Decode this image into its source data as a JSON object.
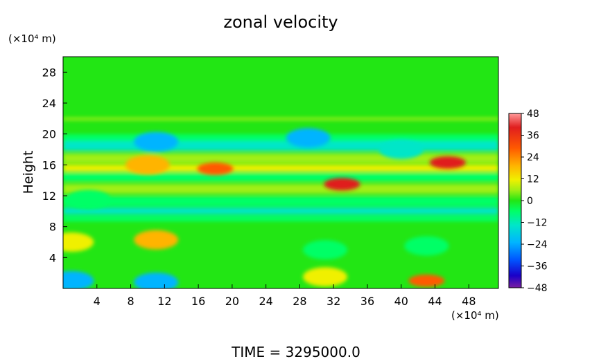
{
  "chart_data": {
    "type": "heatmap",
    "title": "zonal velocity",
    "ylabel": "Height",
    "y_unit": "(×10⁴ m)",
    "x_unit": "(×10⁴ m)",
    "xlim": [
      0,
      51.5
    ],
    "ylim": [
      0,
      30
    ],
    "x_ticks": [
      4,
      8,
      12,
      16,
      20,
      24,
      28,
      32,
      36,
      40,
      44,
      48
    ],
    "y_ticks": [
      4,
      8,
      12,
      16,
      20,
      24,
      28
    ],
    "colorbar": {
      "min": -48,
      "max": 48,
      "ticks": [
        48,
        36,
        24,
        12,
        0,
        -12,
        -24,
        -36,
        -48
      ],
      "colors": [
        "#7a1fa2",
        "#1a00c8",
        "#0055ff",
        "#00b4ff",
        "#00e6c8",
        "#00ff66",
        "#22e614",
        "#a0ef14",
        "#f0f000",
        "#ffb400",
        "#ff5a00",
        "#e01e1e",
        "#ff9999"
      ]
    },
    "features": [
      {
        "x": 11,
        "y": 6.3,
        "value": 24
      },
      {
        "x": 1,
        "y": 6,
        "value": 18
      },
      {
        "x": 18,
        "y": 15.5,
        "value": 30
      },
      {
        "x": 10,
        "y": 16,
        "value": 24
      },
      {
        "x": 33,
        "y": 13.5,
        "value": 36
      },
      {
        "x": 45.5,
        "y": 16.3,
        "value": 40
      },
      {
        "x": 43,
        "y": 1,
        "value": 30
      },
      {
        "x": 31,
        "y": 1.5,
        "value": 18
      },
      {
        "x": 11,
        "y": 19,
        "value": -24
      },
      {
        "x": 29,
        "y": 19.5,
        "value": -24
      },
      {
        "x": 40,
        "y": 18,
        "value": -18
      },
      {
        "x": 1,
        "y": 1,
        "value": -24
      },
      {
        "x": 11,
        "y": 0.8,
        "value": -24
      },
      {
        "x": 31,
        "y": 5,
        "value": -12
      },
      {
        "x": 43,
        "y": 5.5,
        "value": -12
      },
      {
        "x": 3,
        "y": 11.5,
        "value": -12
      }
    ]
  },
  "footer": {
    "time_label": "TIME  =  3295000.0"
  }
}
